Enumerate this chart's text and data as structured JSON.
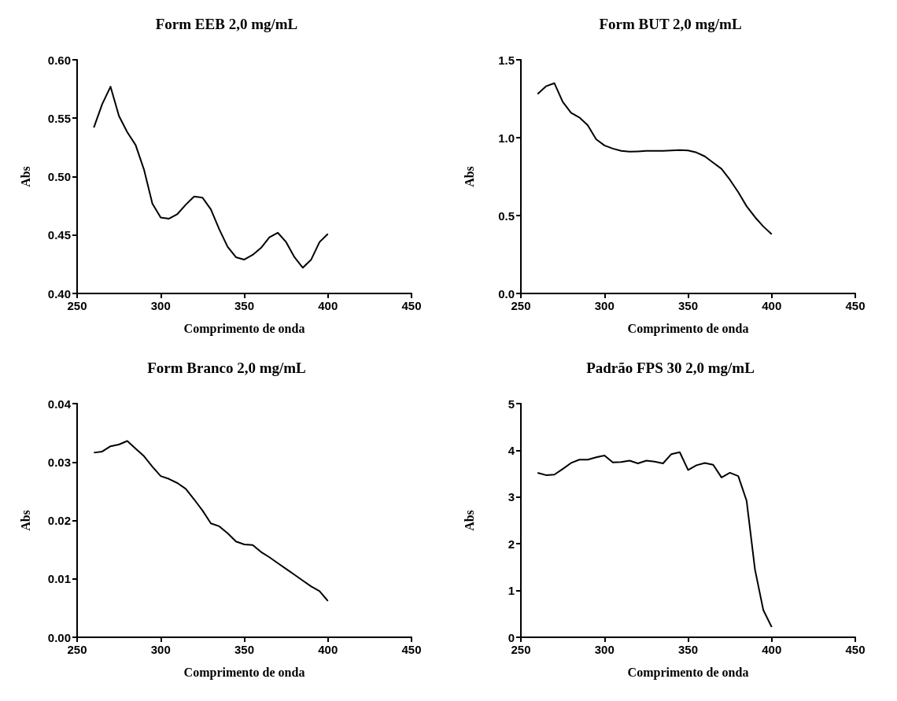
{
  "chart_data": [
    {
      "type": "line",
      "title": "Form EEB 2,0 mg/mL",
      "xlabel": "Comprimento de onda",
      "ylabel": "Abs",
      "xlim": [
        250,
        450
      ],
      "xticks": [
        250,
        300,
        350,
        400,
        450
      ],
      "ylim": [
        0.4,
        0.6
      ],
      "yticks": [
        {
          "value": 0.4,
          "label": "0.40"
        },
        {
          "value": 0.45,
          "label": "0.45"
        },
        {
          "value": 0.5,
          "label": "0.50"
        },
        {
          "value": 0.55,
          "label": "0.55"
        },
        {
          "value": 0.6,
          "label": "0.60"
        }
      ],
      "grid": false,
      "marker": "none",
      "line_style": "solid",
      "x": [
        260,
        265,
        270,
        275,
        280,
        285,
        290,
        295,
        300,
        305,
        310,
        315,
        320,
        325,
        330,
        335,
        340,
        345,
        350,
        355,
        360,
        365,
        370,
        375,
        380,
        385,
        390,
        395,
        400
      ],
      "series": [
        {
          "color": "#000000",
          "values": [
            0.542,
            0.562,
            0.577,
            0.552,
            0.538,
            0.527,
            0.506,
            0.477,
            0.465,
            0.464,
            0.468,
            0.476,
            0.483,
            0.482,
            0.472,
            0.455,
            0.44,
            0.431,
            0.429,
            0.433,
            0.439,
            0.448,
            0.452,
            0.444,
            0.431,
            0.422,
            0.429,
            0.444,
            0.451
          ]
        }
      ]
    },
    {
      "type": "line",
      "title": "Form BUT 2,0 mg/mL",
      "xlabel": "Comprimento de onda",
      "ylabel": "Abs",
      "xlim": [
        250,
        450
      ],
      "xticks": [
        250,
        300,
        350,
        400,
        450
      ],
      "ylim": [
        0,
        1.5
      ],
      "yticks": [
        {
          "value": 0,
          "label": "0.0"
        },
        {
          "value": 0.5,
          "label": "0.5"
        },
        {
          "value": 1,
          "label": "1.0"
        },
        {
          "value": 1.5,
          "label": "1.5"
        }
      ],
      "grid": false,
      "marker": "none",
      "line_style": "solid",
      "x": [
        260,
        265,
        270,
        275,
        280,
        285,
        290,
        295,
        300,
        305,
        310,
        315,
        320,
        325,
        330,
        335,
        340,
        345,
        350,
        355,
        360,
        365,
        370,
        375,
        380,
        385,
        390,
        395,
        400
      ],
      "series": [
        {
          "color": "#000000",
          "values": [
            1.28,
            1.33,
            1.35,
            1.23,
            1.16,
            1.13,
            1.08,
            0.99,
            0.95,
            0.93,
            0.915,
            0.91,
            0.912,
            0.915,
            0.915,
            0.915,
            0.918,
            0.92,
            0.918,
            0.905,
            0.88,
            0.84,
            0.8,
            0.73,
            0.65,
            0.56,
            0.49,
            0.43,
            0.38
          ]
        }
      ]
    },
    {
      "type": "line",
      "title": "Form Branco 2,0 mg/mL",
      "xlabel": "Comprimento de onda",
      "ylabel": "Abs",
      "xlim": [
        250,
        450
      ],
      "xticks": [
        250,
        300,
        350,
        400,
        450
      ],
      "ylim": [
        0,
        0.04
      ],
      "yticks": [
        {
          "value": 0,
          "label": "0.00"
        },
        {
          "value": 0.01,
          "label": "0.01"
        },
        {
          "value": 0.02,
          "label": "0.02"
        },
        {
          "value": 0.03,
          "label": "0.03"
        },
        {
          "value": 0.04,
          "label": "0.04"
        }
      ],
      "grid": false,
      "marker": "none",
      "line_style": "solid",
      "x": [
        260,
        265,
        270,
        275,
        280,
        285,
        290,
        295,
        300,
        305,
        310,
        315,
        320,
        325,
        330,
        335,
        340,
        345,
        350,
        355,
        360,
        365,
        370,
        375,
        380,
        385,
        390,
        395,
        400
      ],
      "series": [
        {
          "color": "#000000",
          "values": [
            0.0316,
            0.0318,
            0.0327,
            0.033,
            0.0336,
            0.0323,
            0.031,
            0.0292,
            0.0276,
            0.0271,
            0.0264,
            0.0254,
            0.0236,
            0.0217,
            0.0195,
            0.019,
            0.0178,
            0.0164,
            0.0159,
            0.0158,
            0.0146,
            0.0137,
            0.0127,
            0.0117,
            0.0107,
            0.0097,
            0.0087,
            0.0079,
            0.0062
          ]
        }
      ]
    },
    {
      "type": "line",
      "title": "Padrão FPS 30 2,0 mg/mL",
      "xlabel": "Comprimento de onda",
      "ylabel": "Abs",
      "xlim": [
        250,
        450
      ],
      "xticks": [
        250,
        300,
        350,
        400,
        450
      ],
      "ylim": [
        0,
        5
      ],
      "yticks": [
        0,
        1,
        2,
        3,
        4,
        5
      ],
      "grid": false,
      "marker": "none",
      "line_style": "solid",
      "x": [
        260,
        265,
        270,
        275,
        280,
        285,
        290,
        295,
        300,
        305,
        310,
        315,
        320,
        325,
        330,
        335,
        340,
        345,
        350,
        355,
        360,
        365,
        370,
        375,
        380,
        385,
        390,
        395,
        400
      ],
      "series": [
        {
          "color": "#000000",
          "values": [
            3.52,
            3.47,
            3.48,
            3.6,
            3.73,
            3.8,
            3.8,
            3.85,
            3.89,
            3.74,
            3.75,
            3.78,
            3.72,
            3.78,
            3.76,
            3.72,
            3.92,
            3.96,
            3.58,
            3.68,
            3.73,
            3.69,
            3.42,
            3.52,
            3.45,
            2.92,
            1.45,
            0.58,
            0.22
          ]
        }
      ]
    }
  ]
}
